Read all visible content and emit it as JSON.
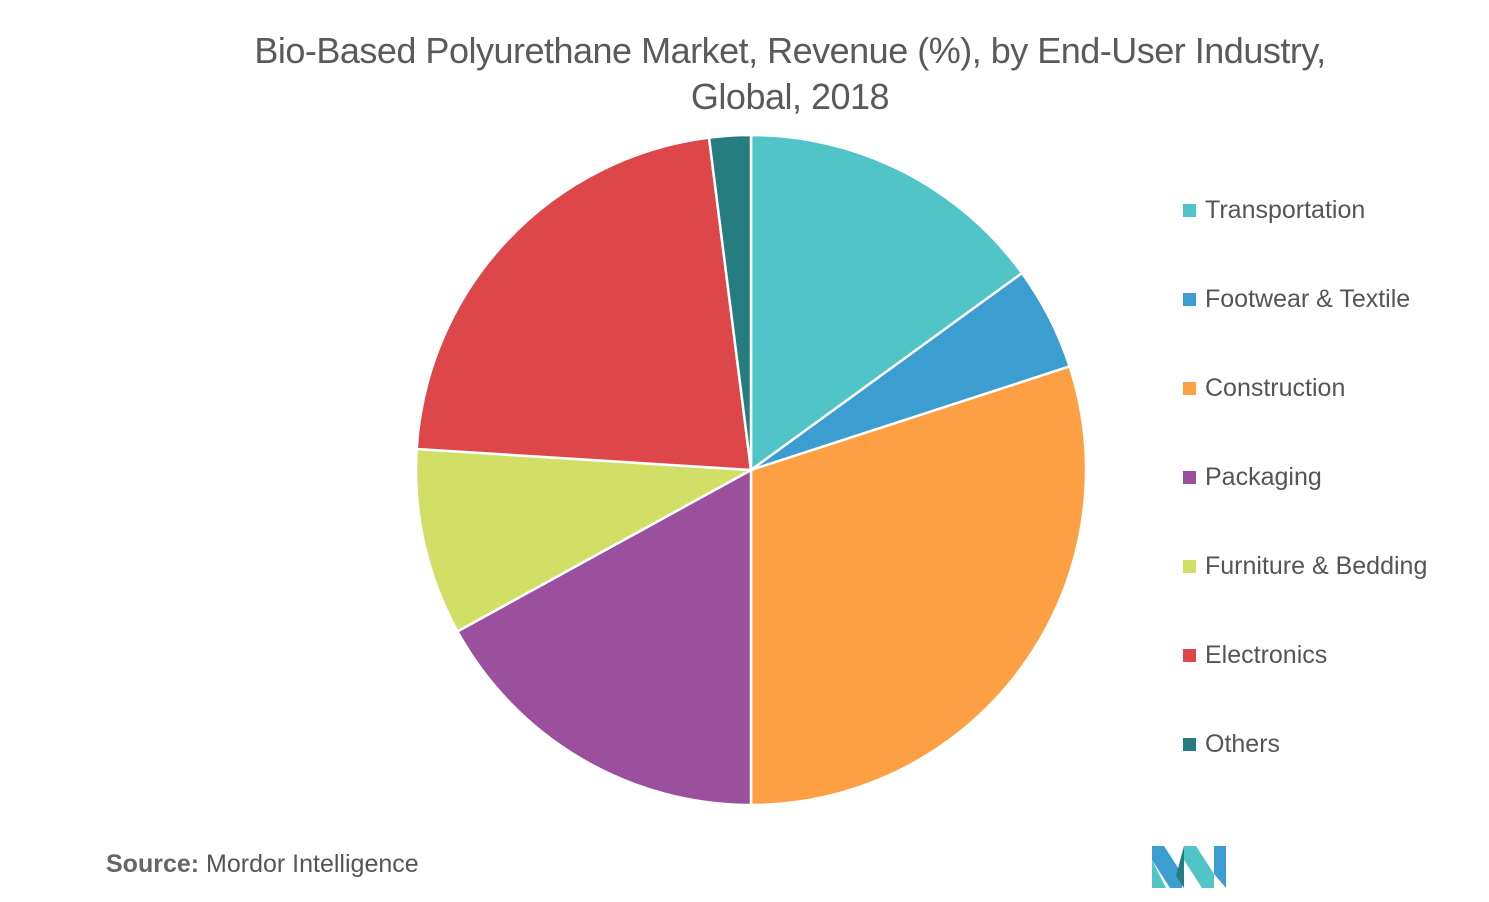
{
  "chart_data": {
    "type": "pie",
    "title": "Bio-Based Polyurethane Market, Revenue (%), by End-User Industry, Global, 2018",
    "title_lines": [
      "Bio-Based Polyurethane Market, Revenue (%), by End-User Industry,",
      "Global, 2018"
    ],
    "legend_placement": "right",
    "slices": [
      {
        "name": "Transportation",
        "value": 15,
        "color": "#50C4C6"
      },
      {
        "name": "Footwear & Textile",
        "value": 5,
        "color": "#3C9DD0"
      },
      {
        "name": "Construction",
        "value": 30,
        "color": "#FD9F43"
      },
      {
        "name": "Packaging",
        "value": 17,
        "color": "#9B509E"
      },
      {
        "name": "Furniture & Bedding",
        "value": 9,
        "color": "#D1DF66"
      },
      {
        "name": "Electronics",
        "value": 22,
        "color": "#DD4749"
      },
      {
        "name": "Others",
        "value": 2,
        "color": "#267D7F"
      }
    ]
  },
  "source": {
    "label": "Source:",
    "text": "Mordor Intelligence"
  },
  "logo": {
    "icon": "mordor-intelligence-logo"
  }
}
